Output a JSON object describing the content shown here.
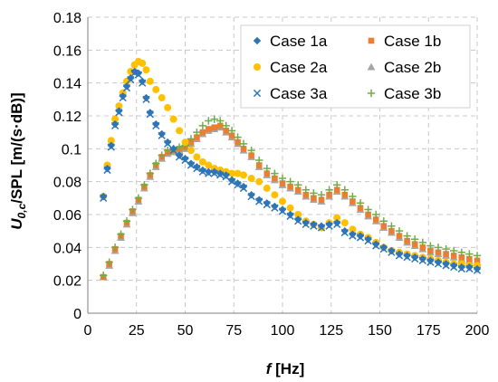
{
  "chart_data": {
    "type": "scatter",
    "ylabel_main": "U",
    "ylabel_sub": "0,c",
    "ylabel_rest": "/SPL [m/(s·dB)]",
    "xlabel_main": "f",
    "xlabel_rest": " [Hz]",
    "xlim": [
      0,
      200
    ],
    "ylim": [
      0,
      0.18
    ],
    "x_ticks": [
      0,
      25,
      50,
      75,
      100,
      125,
      150,
      175,
      200
    ],
    "y_ticks": [
      0,
      0.02,
      0.04,
      0.06,
      0.08,
      0.1,
      0.12,
      0.14,
      0.16,
      0.18
    ],
    "y_tick_labels": [
      "0",
      "0.02",
      "0.04",
      "0.06",
      "0.08",
      "0.1",
      "0.12",
      "0.14",
      "0.16",
      "0.18"
    ],
    "grid": true,
    "legend_position": "top-right",
    "series": [
      {
        "name": "Case 1a",
        "marker": "diamond",
        "color": "#2e75b6",
        "x": [
          8,
          10,
          12,
          14,
          16,
          18,
          20,
          22,
          24,
          26,
          28,
          30,
          32,
          35,
          38,
          41,
          44,
          47,
          50,
          53,
          56,
          59,
          62,
          65,
          68,
          71,
          74,
          77,
          80,
          84,
          88,
          92,
          96,
          100,
          104,
          108,
          112,
          116,
          120,
          124,
          128,
          132,
          136,
          140,
          144,
          148,
          152,
          156,
          160,
          164,
          168,
          172,
          176,
          180,
          184,
          188,
          192,
          196,
          200
        ],
        "y": [
          0.071,
          0.088,
          0.102,
          0.115,
          0.123,
          0.132,
          0.138,
          0.143,
          0.147,
          0.146,
          0.141,
          0.131,
          0.122,
          0.115,
          0.109,
          0.104,
          0.1,
          0.096,
          0.094,
          0.091,
          0.089,
          0.087,
          0.086,
          0.086,
          0.085,
          0.084,
          0.081,
          0.079,
          0.077,
          0.072,
          0.069,
          0.067,
          0.065,
          0.063,
          0.06,
          0.057,
          0.055,
          0.054,
          0.053,
          0.054,
          0.055,
          0.05,
          0.048,
          0.047,
          0.045,
          0.042,
          0.04,
          0.038,
          0.036,
          0.035,
          0.034,
          0.033,
          0.032,
          0.031,
          0.03,
          0.029,
          0.028,
          0.028,
          0.027
        ]
      },
      {
        "name": "Case 1b",
        "marker": "square",
        "color": "#ed7d31",
        "x": [
          8,
          11,
          14,
          17,
          20,
          23,
          26,
          29,
          32,
          35,
          38,
          41,
          44,
          47,
          50,
          53,
          56,
          59,
          62,
          65,
          68,
          71,
          74,
          77,
          80,
          84,
          88,
          92,
          96,
          100,
          104,
          108,
          112,
          116,
          120,
          124,
          128,
          132,
          136,
          140,
          144,
          148,
          152,
          156,
          160,
          164,
          168,
          172,
          176,
          180,
          184,
          188,
          192,
          196,
          200
        ],
        "y": [
          0.022,
          0.03,
          0.039,
          0.047,
          0.055,
          0.062,
          0.069,
          0.077,
          0.084,
          0.09,
          0.095,
          0.098,
          0.099,
          0.1,
          0.101,
          0.104,
          0.107,
          0.11,
          0.112,
          0.113,
          0.114,
          0.111,
          0.108,
          0.104,
          0.1,
          0.096,
          0.09,
          0.085,
          0.082,
          0.079,
          0.077,
          0.075,
          0.072,
          0.07,
          0.069,
          0.072,
          0.075,
          0.072,
          0.068,
          0.064,
          0.06,
          0.057,
          0.053,
          0.05,
          0.047,
          0.044,
          0.042,
          0.04,
          0.038,
          0.037,
          0.036,
          0.035,
          0.034,
          0.033,
          0.032
        ]
      },
      {
        "name": "Case 2a",
        "marker": "circle",
        "color": "#ffc000",
        "x": [
          8,
          10,
          12,
          14,
          16,
          18,
          20,
          22,
          24,
          26,
          28,
          30,
          32,
          35,
          38,
          41,
          44,
          47,
          50,
          53,
          56,
          59,
          62,
          65,
          68,
          71,
          74,
          77,
          80,
          84,
          88,
          92,
          96,
          100,
          104,
          108,
          112,
          116,
          120,
          124,
          128,
          132,
          136,
          140,
          144,
          148,
          152,
          156,
          160,
          164,
          168,
          172,
          176,
          180,
          184,
          188,
          192,
          196,
          200
        ],
        "y": [
          0.071,
          0.09,
          0.105,
          0.118,
          0.126,
          0.134,
          0.141,
          0.147,
          0.151,
          0.153,
          0.152,
          0.148,
          0.141,
          0.136,
          0.131,
          0.125,
          0.118,
          0.111,
          0.104,
          0.099,
          0.095,
          0.092,
          0.09,
          0.088,
          0.087,
          0.086,
          0.085,
          0.085,
          0.084,
          0.082,
          0.08,
          0.076,
          0.072,
          0.068,
          0.064,
          0.06,
          0.056,
          0.054,
          0.052,
          0.055,
          0.058,
          0.055,
          0.051,
          0.048,
          0.046,
          0.043,
          0.04,
          0.038,
          0.037,
          0.036,
          0.035,
          0.034,
          0.033,
          0.032,
          0.031,
          0.03,
          0.03,
          0.029,
          0.029
        ]
      },
      {
        "name": "Case 2b",
        "marker": "triangle",
        "color": "#a5a5a5",
        "x": [
          8,
          11,
          14,
          17,
          20,
          23,
          26,
          29,
          32,
          35,
          38,
          41,
          44,
          47,
          50,
          53,
          56,
          59,
          62,
          65,
          68,
          71,
          74,
          77,
          80,
          84,
          88,
          92,
          96,
          100,
          104,
          108,
          112,
          116,
          120,
          124,
          128,
          132,
          136,
          140,
          144,
          148,
          152,
          156,
          160,
          164,
          168,
          172,
          176,
          180,
          184,
          188,
          192,
          196,
          200
        ],
        "y": [
          0.022,
          0.029,
          0.038,
          0.046,
          0.054,
          0.061,
          0.068,
          0.076,
          0.083,
          0.089,
          0.094,
          0.097,
          0.098,
          0.099,
          0.1,
          0.103,
          0.106,
          0.109,
          0.111,
          0.112,
          0.113,
          0.11,
          0.107,
          0.103,
          0.099,
          0.095,
          0.089,
          0.084,
          0.081,
          0.078,
          0.076,
          0.074,
          0.071,
          0.069,
          0.068,
          0.071,
          0.074,
          0.071,
          0.067,
          0.063,
          0.059,
          0.056,
          0.052,
          0.049,
          0.046,
          0.043,
          0.041,
          0.039,
          0.037,
          0.036,
          0.035,
          0.034,
          0.033,
          0.032,
          0.031
        ]
      },
      {
        "name": "Case 3a",
        "marker": "x",
        "color": "#2e75b6",
        "x": [
          8,
          10,
          12,
          14,
          16,
          18,
          20,
          22,
          24,
          26,
          28,
          30,
          32,
          35,
          38,
          41,
          44,
          47,
          50,
          53,
          56,
          59,
          62,
          65,
          68,
          71,
          74,
          77,
          80,
          84,
          88,
          92,
          96,
          100,
          104,
          108,
          112,
          116,
          120,
          124,
          128,
          132,
          136,
          140,
          144,
          148,
          152,
          156,
          160,
          164,
          168,
          172,
          176,
          180,
          184,
          188,
          192,
          196,
          200
        ],
        "y": [
          0.07,
          0.087,
          0.101,
          0.114,
          0.122,
          0.131,
          0.137,
          0.142,
          0.146,
          0.145,
          0.14,
          0.13,
          0.121,
          0.114,
          0.108,
          0.103,
          0.099,
          0.095,
          0.093,
          0.09,
          0.088,
          0.086,
          0.085,
          0.085,
          0.084,
          0.083,
          0.08,
          0.078,
          0.076,
          0.071,
          0.068,
          0.066,
          0.064,
          0.062,
          0.059,
          0.056,
          0.054,
          0.053,
          0.052,
          0.053,
          0.054,
          0.049,
          0.047,
          0.046,
          0.044,
          0.041,
          0.039,
          0.037,
          0.035,
          0.034,
          0.033,
          0.032,
          0.031,
          0.03,
          0.029,
          0.028,
          0.027,
          0.027,
          0.026
        ]
      },
      {
        "name": "Case 3b",
        "marker": "plus",
        "color": "#70ad47",
        "x": [
          8,
          11,
          14,
          17,
          20,
          23,
          26,
          29,
          32,
          35,
          38,
          41,
          44,
          47,
          50,
          53,
          56,
          59,
          62,
          65,
          68,
          71,
          74,
          77,
          80,
          84,
          88,
          92,
          96,
          100,
          104,
          108,
          112,
          116,
          120,
          124,
          128,
          132,
          136,
          140,
          144,
          148,
          152,
          156,
          160,
          164,
          168,
          172,
          176,
          180,
          184,
          188,
          192,
          196,
          200
        ],
        "y": [
          0.023,
          0.031,
          0.04,
          0.048,
          0.056,
          0.063,
          0.07,
          0.078,
          0.085,
          0.091,
          0.096,
          0.099,
          0.1,
          0.101,
          0.102,
          0.106,
          0.11,
          0.114,
          0.117,
          0.118,
          0.117,
          0.114,
          0.111,
          0.107,
          0.103,
          0.099,
          0.093,
          0.088,
          0.085,
          0.082,
          0.08,
          0.078,
          0.075,
          0.073,
          0.072,
          0.075,
          0.078,
          0.075,
          0.071,
          0.067,
          0.063,
          0.06,
          0.056,
          0.053,
          0.05,
          0.047,
          0.045,
          0.043,
          0.041,
          0.04,
          0.039,
          0.038,
          0.037,
          0.036,
          0.035
        ]
      }
    ]
  }
}
